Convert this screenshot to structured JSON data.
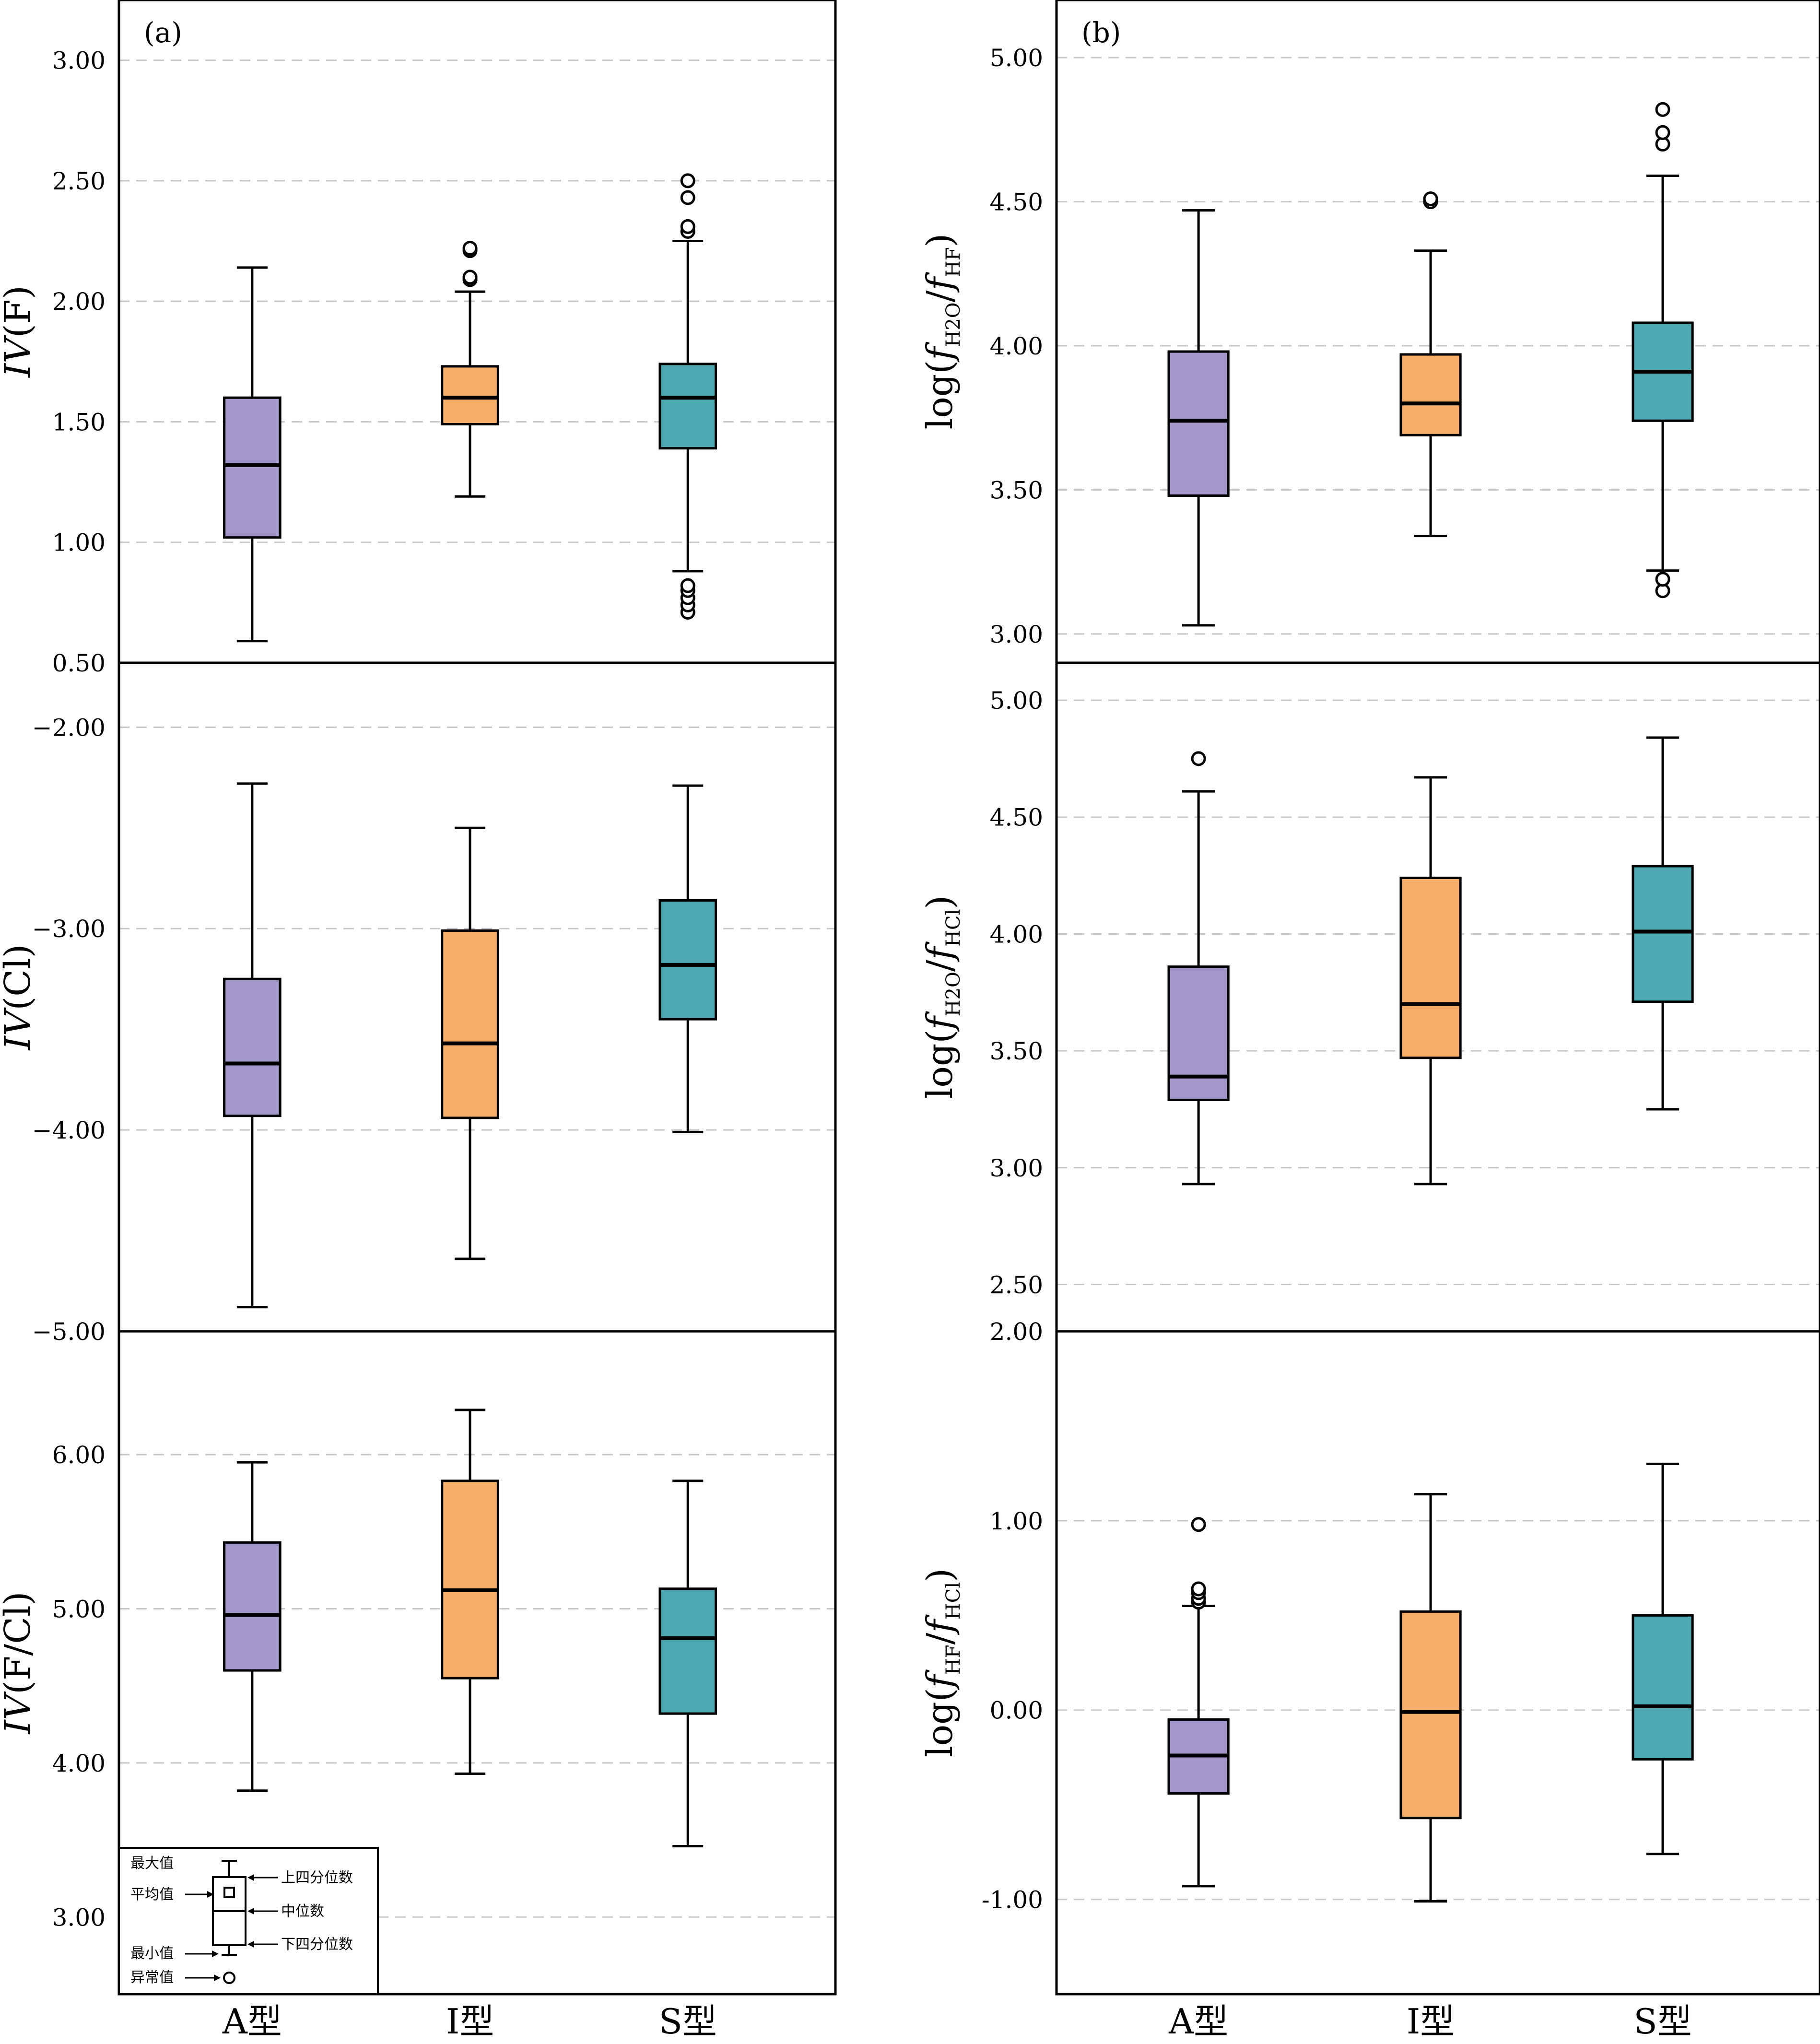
{
  "colors": {
    "A": "#a397c9",
    "I": "#f4ae6a",
    "S": "#4ea8b2",
    "grid": "#c8c8c8"
  },
  "categories": [
    "A型",
    "I型",
    "S型"
  ],
  "chart_data": [
    {
      "type": "box",
      "panel_label": "(a)",
      "ylabel_main": "IV",
      "ylabel_paren": "(F)",
      "ylim": [
        0.5,
        3.25
      ],
      "yticks": [
        "0.50",
        "1.00",
        "1.50",
        "2.00",
        "2.50",
        "3.00"
      ],
      "series": [
        {
          "category": "A型",
          "min": 0.59,
          "q1": 1.02,
          "median": 1.32,
          "q3": 1.6,
          "max": 2.14,
          "outliers": []
        },
        {
          "category": "I型",
          "min": 1.19,
          "q1": 1.49,
          "median": 1.6,
          "q3": 1.73,
          "max": 2.04,
          "outliers": [
            2.09,
            2.1,
            2.21,
            2.22
          ]
        },
        {
          "category": "S型",
          "min": 0.88,
          "q1": 1.39,
          "median": 1.6,
          "q3": 1.74,
          "max": 2.25,
          "outliers": [
            0.71,
            0.74,
            0.77,
            0.8,
            0.82,
            2.29,
            2.31,
            2.43,
            2.5
          ]
        }
      ]
    },
    {
      "type": "box",
      "panel_label": "(b)",
      "ylabel_main": "log(",
      "ylabel_sub": "f_H2O/f_HF",
      "ylim": [
        2.9,
        5.2
      ],
      "yticks": [
        "3.00",
        "3.50",
        "4.00",
        "4.50",
        "5.00"
      ],
      "series": [
        {
          "category": "A型",
          "min": 3.03,
          "q1": 3.48,
          "median": 3.74,
          "q3": 3.98,
          "max": 4.47,
          "outliers": []
        },
        {
          "category": "I型",
          "min": 3.34,
          "q1": 3.69,
          "median": 3.8,
          "q3": 3.97,
          "max": 4.33,
          "outliers": [
            4.5,
            4.51
          ]
        },
        {
          "category": "S型",
          "min": 3.22,
          "q1": 3.74,
          "median": 3.91,
          "q3": 4.08,
          "max": 4.59,
          "outliers": [
            3.15,
            3.19,
            4.7,
            4.74,
            4.82
          ]
        }
      ]
    },
    {
      "type": "box",
      "panel_label": "",
      "ylabel_main": "IV",
      "ylabel_paren": "(Cl)",
      "ylim": [
        -5.0,
        -1.68
      ],
      "yticks": [
        "−5.00",
        "−4.00",
        "−3.00",
        "−2.00"
      ],
      "ytick_values": [
        -5.0,
        -4.0,
        -3.0,
        -2.0
      ],
      "series": [
        {
          "category": "A型",
          "min": -4.88,
          "q1": -3.93,
          "median": -3.67,
          "q3": -3.25,
          "max": -2.28,
          "outliers": []
        },
        {
          "category": "I型",
          "min": -4.64,
          "q1": -3.94,
          "median": -3.57,
          "q3": -3.01,
          "max": -2.5,
          "outliers": []
        },
        {
          "category": "S型",
          "min": -4.01,
          "q1": -3.45,
          "median": -3.18,
          "q3": -2.86,
          "max": -2.29,
          "outliers": []
        }
      ]
    },
    {
      "type": "box",
      "panel_label": "",
      "ylabel_main": "log(",
      "ylabel_sub": "f_H2O/f_HCl",
      "ylim": [
        2.3,
        5.16
      ],
      "yticks": [
        "2.50",
        "3.00",
        "3.50",
        "4.00",
        "4.50",
        "5.00"
      ],
      "series": [
        {
          "category": "A型",
          "min": 2.93,
          "q1": 3.29,
          "median": 3.39,
          "q3": 3.86,
          "max": 4.61,
          "outliers": [
            4.75
          ]
        },
        {
          "category": "I型",
          "min": 2.93,
          "q1": 3.47,
          "median": 3.7,
          "q3": 4.24,
          "max": 4.67,
          "outliers": []
        },
        {
          "category": "S型",
          "min": 3.25,
          "q1": 3.71,
          "median": 4.01,
          "q3": 4.29,
          "max": 4.84,
          "outliers": []
        }
      ]
    },
    {
      "type": "box",
      "panel_label": "",
      "ylabel_main": "IV",
      "ylabel_paren": "(F/Cl)",
      "ylim": [
        2.5,
        6.8
      ],
      "yticks": [
        "3.00",
        "4.00",
        "5.00",
        "6.00"
      ],
      "series": [
        {
          "category": "A型",
          "min": 3.82,
          "q1": 4.6,
          "median": 4.96,
          "q3": 5.43,
          "max": 5.95,
          "outliers": []
        },
        {
          "category": "I型",
          "min": 3.93,
          "q1": 4.55,
          "median": 5.12,
          "q3": 5.83,
          "max": 6.29,
          "outliers": []
        },
        {
          "category": "S型",
          "min": 3.46,
          "q1": 4.32,
          "median": 4.81,
          "q3": 5.13,
          "max": 5.83,
          "outliers": []
        }
      ]
    },
    {
      "type": "box",
      "panel_label": "",
      "ylabel_main": "log(",
      "ylabel_sub": "f_HF/f_HCl",
      "ylim": [
        -1.5,
        2.0
      ],
      "yticks": [
        "-1.00",
        "0.00",
        "1.00",
        "2.00"
      ],
      "ytick_values": [
        -1.0,
        0.0,
        1.0,
        2.0
      ],
      "series": [
        {
          "category": "A型",
          "min": -0.93,
          "q1": -0.44,
          "median": -0.24,
          "q3": -0.05,
          "max": 0.55,
          "outliers": [
            0.57,
            0.59,
            0.62,
            0.64,
            0.98
          ]
        },
        {
          "category": "I型",
          "min": -1.01,
          "q1": -0.57,
          "median": -0.01,
          "q3": 0.52,
          "max": 1.14,
          "outliers": []
        },
        {
          "category": "S型",
          "min": -0.76,
          "q1": -0.26,
          "median": 0.02,
          "q3": 0.5,
          "max": 1.3,
          "outliers": []
        }
      ]
    }
  ],
  "legend": {
    "max": "最大值",
    "mean": "平均值",
    "min": "最小值",
    "outlier": "异常值",
    "q3": "上四分位数",
    "median": "中位数",
    "q1": "下四分位数"
  }
}
